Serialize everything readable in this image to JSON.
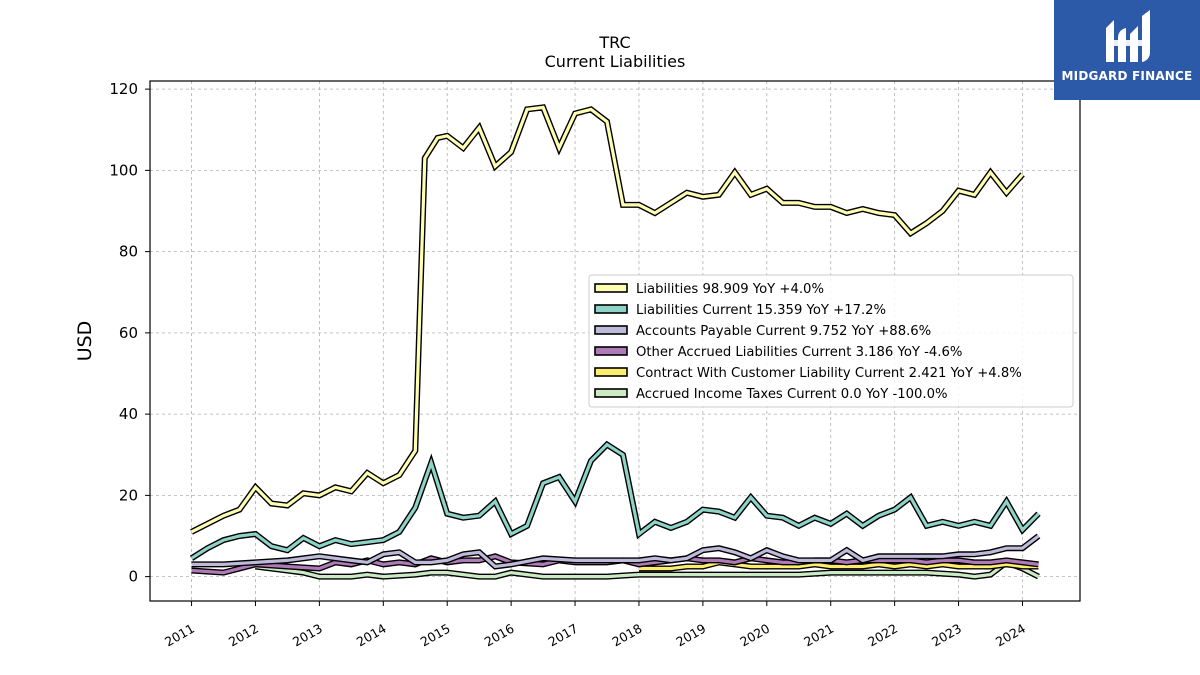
{
  "chart_data": {
    "type": "line",
    "title": "TRC",
    "subtitle": "Current  Liabilities",
    "ylabel": "USD",
    "xlabel": "",
    "ylim": [
      -6,
      122
    ],
    "xlim": [
      2010.35,
      2024.9
    ],
    "yticks": [
      0,
      20,
      40,
      60,
      80,
      100,
      120
    ],
    "xticks": [
      "2011",
      "2012",
      "2013",
      "2014",
      "2015",
      "2016",
      "2017",
      "2018",
      "2019",
      "2020",
      "2021",
      "2022",
      "2023",
      "2024"
    ],
    "grid": true,
    "legend_position": "center-right",
    "series": [
      {
        "name": "Liabilities",
        "legend": "Liabilities  98.909 YoY +4.0%",
        "color": "#ffffb3",
        "x": [
          2011.0,
          2011.5,
          2011.75,
          2012.0,
          2012.25,
          2012.5,
          2012.75,
          2013.0,
          2013.25,
          2013.5,
          2013.75,
          2014.0,
          2014.25,
          2014.5,
          2014.65,
          2014.85,
          2015.0,
          2015.25,
          2015.5,
          2015.75,
          2016.0,
          2016.25,
          2016.5,
          2016.75,
          2017.0,
          2017.25,
          2017.5,
          2017.75,
          2018.0,
          2018.25,
          2018.5,
          2018.75,
          2019.0,
          2019.25,
          2019.5,
          2019.75,
          2020.0,
          2020.25,
          2020.5,
          2020.75,
          2021.0,
          2021.25,
          2021.5,
          2021.75,
          2022.0,
          2022.25,
          2022.5,
          2022.75,
          2023.0,
          2023.25,
          2023.5,
          2023.75,
          2024.0,
          2024.25
        ],
        "y": [
          11,
          15,
          16.5,
          22,
          18,
          17.5,
          20.5,
          20,
          22,
          21,
          25.5,
          23,
          25,
          31,
          103,
          108,
          108.5,
          105.5,
          110.5,
          101,
          104.5,
          115,
          115.5,
          105.5,
          114,
          115,
          112,
          91.5,
          91.5,
          89.5,
          92,
          94.5,
          93.5,
          94,
          99.5,
          94,
          95.5,
          92,
          92,
          91,
          91,
          89.5,
          90.5,
          89.5,
          89,
          84.5,
          87,
          90,
          95,
          94,
          99.5,
          94.5,
          99,
          null
        ],
        "values_note": ""
      },
      {
        "name": "Liabilities Current",
        "legend": "Liabilities Current  15.359 YoY +17.2%",
        "color": "#8dd3c7",
        "x": [
          2011.0,
          2011.25,
          2011.5,
          2011.75,
          2012.0,
          2012.25,
          2012.5,
          2012.75,
          2013.0,
          2013.25,
          2013.5,
          2013.75,
          2014.0,
          2014.25,
          2014.5,
          2014.75,
          2015.0,
          2015.25,
          2015.5,
          2015.75,
          2016.0,
          2016.25,
          2016.5,
          2016.75,
          2017.0,
          2017.25,
          2017.5,
          2017.75,
          2018.0,
          2018.25,
          2018.5,
          2018.75,
          2019.0,
          2019.25,
          2019.5,
          2019.75,
          2020.0,
          2020.25,
          2020.5,
          2020.75,
          2021.0,
          2021.25,
          2021.5,
          2021.75,
          2022.0,
          2022.25,
          2022.5,
          2022.75,
          2023.0,
          2023.25,
          2023.5,
          2023.75,
          2024.0,
          2024.25
        ],
        "y": [
          4.5,
          7,
          9,
          10,
          10.5,
          7.5,
          6.5,
          9.5,
          7.5,
          9,
          8,
          8.5,
          9,
          11,
          17,
          28,
          15.5,
          14.5,
          15,
          18.5,
          10.5,
          12.5,
          23,
          24.5,
          18.5,
          28.5,
          32.5,
          30,
          10.5,
          13.5,
          12,
          13.5,
          16.5,
          16,
          14.5,
          19.5,
          15,
          14.5,
          12.5,
          14.5,
          13,
          15.5,
          12.5,
          15,
          16.5,
          19.5,
          12.5,
          13.5,
          12.5,
          13.5,
          12.5,
          18.5,
          11.5,
          15.5
        ]
      },
      {
        "name": "Accounts Payable Current",
        "legend": "Accounts Payable Current  9.752 YoY +88.6%",
        "color": "#bebada",
        "x": [
          2011.0,
          2011.5,
          2012.0,
          2012.5,
          2013.0,
          2013.5,
          2013.75,
          2014.0,
          2014.25,
          2014.5,
          2014.75,
          2015.0,
          2015.25,
          2015.5,
          2015.75,
          2016.0,
          2016.5,
          2017.0,
          2017.5,
          2018.0,
          2018.25,
          2018.5,
          2018.75,
          2019.0,
          2019.25,
          2019.5,
          2019.75,
          2020.0,
          2020.25,
          2020.5,
          2020.75,
          2021.0,
          2021.25,
          2021.5,
          2021.75,
          2022.0,
          2022.25,
          2022.5,
          2022.75,
          2023.0,
          2023.25,
          2023.5,
          2023.75,
          2024.0,
          2024.25
        ],
        "y": [
          3,
          3,
          3.5,
          4,
          5,
          4,
          3.5,
          5.5,
          6,
          3.5,
          3.5,
          4,
          5.5,
          6,
          2.5,
          3,
          4.5,
          4,
          4,
          4,
          4.5,
          4,
          4.5,
          6.5,
          7,
          6,
          4.5,
          6.5,
          5,
          4,
          4,
          4,
          6.5,
          4,
          5,
          5,
          5,
          5,
          5,
          5.5,
          5.5,
          6,
          7,
          7,
          10
        ]
      },
      {
        "name": "Other Accrued Liabilities Current",
        "legend": "Other Accrued Liabilities Current  3.186 YoY -4.6%",
        "color": "#b07ab8",
        "x": [
          2011.0,
          2011.5,
          2012.0,
          2012.5,
          2013.0,
          2013.25,
          2013.5,
          2013.75,
          2014.0,
          2014.25,
          2014.5,
          2014.75,
          2015.0,
          2015.25,
          2015.5,
          2015.75,
          2016.0,
          2016.5,
          2016.75,
          2017.0,
          2017.5,
          2017.75,
          2018.0,
          2018.25,
          2018.5,
          2018.75,
          2019.0,
          2019.25,
          2019.5,
          2019.75,
          2020.0,
          2020.25,
          2020.5,
          2020.75,
          2021.0,
          2021.25,
          2021.5,
          2021.75,
          2022.0,
          2022.25,
          2022.5,
          2022.75,
          2023.0,
          2023.25,
          2023.5,
          2023.75,
          2024.0,
          2024.25
        ],
        "y": [
          1.5,
          1,
          3,
          2.5,
          2,
          3.5,
          3,
          4,
          3,
          3.5,
          3,
          4.5,
          3.5,
          4,
          4,
          5,
          3.5,
          3,
          4,
          3.5,
          3.5,
          4,
          3,
          3.5,
          4,
          4.5,
          4,
          4,
          3.5,
          4.5,
          4,
          3.5,
          3.5,
          4,
          4,
          3.5,
          4,
          4,
          4,
          4,
          3.5,
          4,
          4,
          3.5,
          3.5,
          4,
          3.5,
          3
        ]
      },
      {
        "name": "Contract With Customer Liability Current",
        "legend": "Contract With Customer Liability Current  2.421 YoY +4.8%",
        "color": "#ffed6f",
        "x": [
          2018.0,
          2018.5,
          2018.75,
          2019.0,
          2019.25,
          2019.5,
          2019.75,
          2020.0,
          2020.25,
          2020.5,
          2020.75,
          2021.0,
          2021.25,
          2021.5,
          2021.75,
          2022.0,
          2022.25,
          2022.5,
          2022.75,
          2023.0,
          2023.25,
          2023.5,
          2023.75,
          2024.0,
          2024.25
        ],
        "y": [
          2,
          2,
          2.5,
          2.5,
          3.5,
          3,
          2.5,
          2.5,
          2.5,
          2.5,
          3,
          2.5,
          2.5,
          2.5,
          3,
          2.5,
          3,
          2.5,
          3,
          2.5,
          2.5,
          2.5,
          3,
          2.5,
          2.5
        ]
      },
      {
        "name": "Accrued Income Taxes Current",
        "legend": "Accrued Income Taxes Current  0.0 YoY -100.0%",
        "color": "#ccebc5",
        "x": [
          2012.0,
          2012.5,
          2012.75,
          2013.0,
          2013.5,
          2013.75,
          2014.0,
          2014.5,
          2014.75,
          2015.0,
          2015.5,
          2015.75,
          2016.0,
          2016.25,
          2016.5,
          2017.0,
          2017.5,
          2018.0,
          2018.5,
          2019.0,
          2019.5,
          2020.0,
          2020.5,
          2021.0,
          2021.5,
          2022.0,
          2022.5,
          2023.0,
          2023.25,
          2023.5,
          2023.75,
          2024.0,
          2024.25
        ],
        "y": [
          2.5,
          1.5,
          1,
          0,
          0,
          0.5,
          0,
          0.5,
          1,
          1,
          0,
          0,
          1,
          0.5,
          0,
          0,
          0,
          0.5,
          0.5,
          0.5,
          0.5,
          0.5,
          0.5,
          1,
          1,
          1,
          1,
          0.5,
          0,
          0.5,
          3.5,
          2,
          0
        ]
      }
    ]
  },
  "logo": {
    "text": "MIDGARD FINANCE",
    "color": "#2d5aa8"
  }
}
